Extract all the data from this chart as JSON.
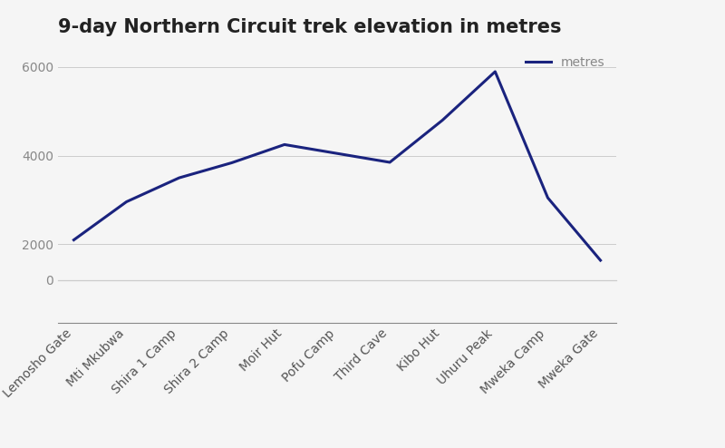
{
  "title": "9-day Northern Circuit trek elevation in metres",
  "categories": [
    "Lemosho Gate",
    "Mti Mkubwa",
    "Shira 1 Camp",
    "Shira 2 Camp",
    "Moir Hut",
    "Pofu Camp",
    "Third Cave",
    "Kibo Hut",
    "Uhuru Peak",
    "Mweka Camp",
    "Mweka Gate"
  ],
  "elevations": [
    2100,
    2960,
    3500,
    3840,
    4250,
    4050,
    3850,
    4800,
    5895,
    3050,
    1640
  ],
  "line_color": "#1a237e",
  "line_width": 2.2,
  "legend_label": "metres",
  "ylim": [
    0,
    6500
  ],
  "yticks": [
    0,
    2000,
    4000,
    6000
  ],
  "background_color": "#f5f5f5",
  "grid_color": "#cccccc",
  "title_fontsize": 15,
  "tick_fontsize": 10,
  "legend_fontsize": 10,
  "ylabel_color": "#888888",
  "xlabel_color": "#555555"
}
